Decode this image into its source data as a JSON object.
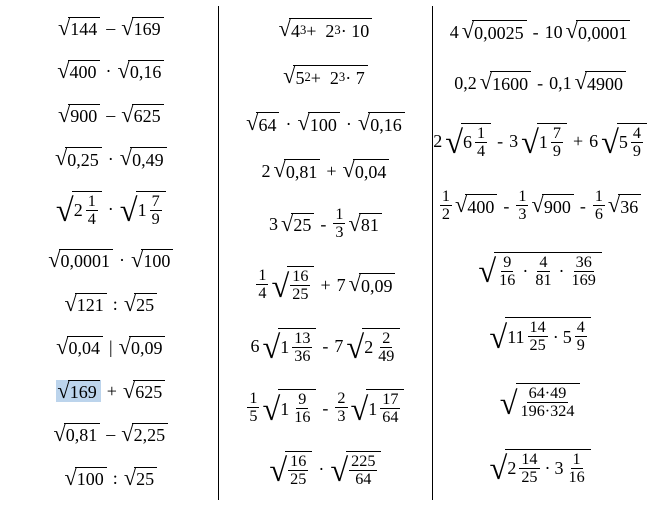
{
  "col1": {
    "e1": {
      "a": "144",
      "b": "169",
      "op": "–"
    },
    "e2": {
      "a": "400",
      "b": "0,16",
      "op": "·"
    },
    "e3": {
      "a": "900",
      "b": "625",
      "op": "–"
    },
    "e4": {
      "a": "0,25",
      "b": "0,49",
      "op": "·"
    },
    "e5": {
      "aw": "2",
      "an": "1",
      "ad": "4",
      "bw": "1",
      "bn": "7",
      "bd": "9",
      "op": "·"
    },
    "e6": {
      "a": "0,0001",
      "b": "100",
      "op": "·"
    },
    "e7": {
      "a": "121",
      "b": "25",
      "op": ":"
    },
    "e8": {
      "a": "0,04",
      "b": "0,09",
      "op": "|"
    },
    "e9": {
      "a": "169",
      "b": "625",
      "op": "+"
    },
    "e10": {
      "a": "0,81",
      "b": "2,25",
      "op": "–"
    },
    "e11": {
      "a": "100",
      "b": "25",
      "op": ":"
    }
  },
  "col2": {
    "e1": {
      "t": "4³ +  2³ · 10"
    },
    "e2": {
      "t": "5² +  2³ · 7"
    },
    "e3": {
      "a": "64",
      "b": "100",
      "c": "0,16",
      "op": "·"
    },
    "e4": {
      "c1": "2",
      "a": "0,81",
      "op": "+",
      "b": "0,04"
    },
    "e5": {
      "c1": "3",
      "a": "25",
      "op": "-",
      "fn": "1",
      "fd": "3",
      "b": "81"
    },
    "e6": {
      "fn": "1",
      "fd": "4",
      "an": "16",
      "ad": "25",
      "op": "+",
      "c2": "7",
      "b": "0,09"
    },
    "e7": {
      "c1": "6",
      "aw": "1",
      "an": "13",
      "ad": "36",
      "op": "-",
      "c2": "7",
      "bw": "2",
      "bn": "2",
      "bd": "49"
    },
    "e8": {
      "fn1": "1",
      "fd1": "5",
      "aw": "1",
      "an": "9",
      "ad": "16",
      "op": "-",
      "fn2": "2",
      "fd2": "3",
      "bw": "1",
      "bn": "17",
      "bd": "64"
    },
    "e9": {
      "an": "16",
      "ad": "25",
      "op": "·",
      "bn": "225",
      "bd": "64"
    }
  },
  "col3": {
    "e1": {
      "c1": "4",
      "a": "0,0025",
      "op": "-",
      "c2": "10",
      "b": "0,0001"
    },
    "e2": {
      "c1": "0,2",
      "a": "1600",
      "op": "-",
      "c2": "0,1",
      "b": "4900"
    },
    "e3": {
      "c1": "2",
      "aw": "6",
      "an": "1",
      "ad": "4",
      "op1": "-",
      "c2": "3",
      "bw": "1",
      "bn": "7",
      "bd": "9",
      "op2": "+",
      "c3": "6",
      "cw": "5",
      "cn": "4",
      "cd": "9"
    },
    "e4": {
      "fn1": "1",
      "fd1": "2",
      "a": "400",
      "op1": "-",
      "fn2": "1",
      "fd2": "3",
      "b": "900",
      "op2": "-",
      "fn3": "1",
      "fd3": "6",
      "c": "36"
    },
    "e5": {
      "an": "9",
      "ad": "16",
      "bn": "4",
      "bd": "81",
      "cn": "36",
      "cd": "169",
      "op": "·"
    },
    "e6": {
      "aw": "11",
      "an": "14",
      "ad": "25",
      "op": "·",
      "bw": "5",
      "bn": "4",
      "bd": "9"
    },
    "e7": {
      "nn": "64·49",
      "nd": "196·324"
    },
    "e8": {
      "aw": "2",
      "an": "14",
      "ad": "25",
      "op": "·",
      "bw": "3",
      "bn": "1",
      "bd": "16"
    }
  }
}
